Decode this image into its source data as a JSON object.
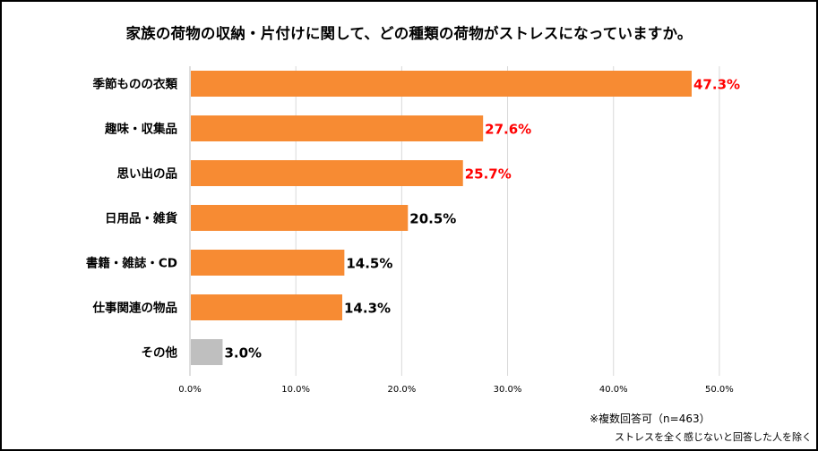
{
  "chart_data": {
    "type": "bar",
    "orientation": "horizontal",
    "title": "家族の荷物の収納・片付けに関して、どの種類の荷物がストレスになっていますか。",
    "categories": [
      "季節ものの衣類",
      "趣味・収集品",
      "思い出の品",
      "日用品・雑貨",
      "書籍・雑誌・CD",
      "仕事関連の物品",
      "その他"
    ],
    "values": [
      47.3,
      27.6,
      25.7,
      20.5,
      14.5,
      14.3,
      3.0
    ],
    "value_labels": [
      "47.3%",
      "27.6%",
      "25.7%",
      "20.5%",
      "14.5%",
      "14.3%",
      "3.0%"
    ],
    "bar_colors": [
      "#F78B33",
      "#F78B33",
      "#F78B33",
      "#F78B33",
      "#F78B33",
      "#F78B33",
      "#BFBFBF"
    ],
    "label_colors": [
      "#FF0000",
      "#FF0000",
      "#FF0000",
      "#000000",
      "#000000",
      "#000000",
      "#000000"
    ],
    "xlim": [
      0,
      55
    ],
    "xticks": [
      0,
      10,
      20,
      30,
      40,
      50
    ],
    "xtick_labels": [
      "0.0%",
      "10.0%",
      "20.0%",
      "30.0%",
      "40.0%",
      "50.0%"
    ],
    "grid": true,
    "xlabel": "",
    "ylabel": ""
  },
  "notes": {
    "line1": "※複数回答可（n=463）",
    "line2": "ストレスを全く感じないと回答した人を除く"
  },
  "colors": {
    "grid": "#D9D9D9",
    "axis": "#BFBFBF"
  }
}
